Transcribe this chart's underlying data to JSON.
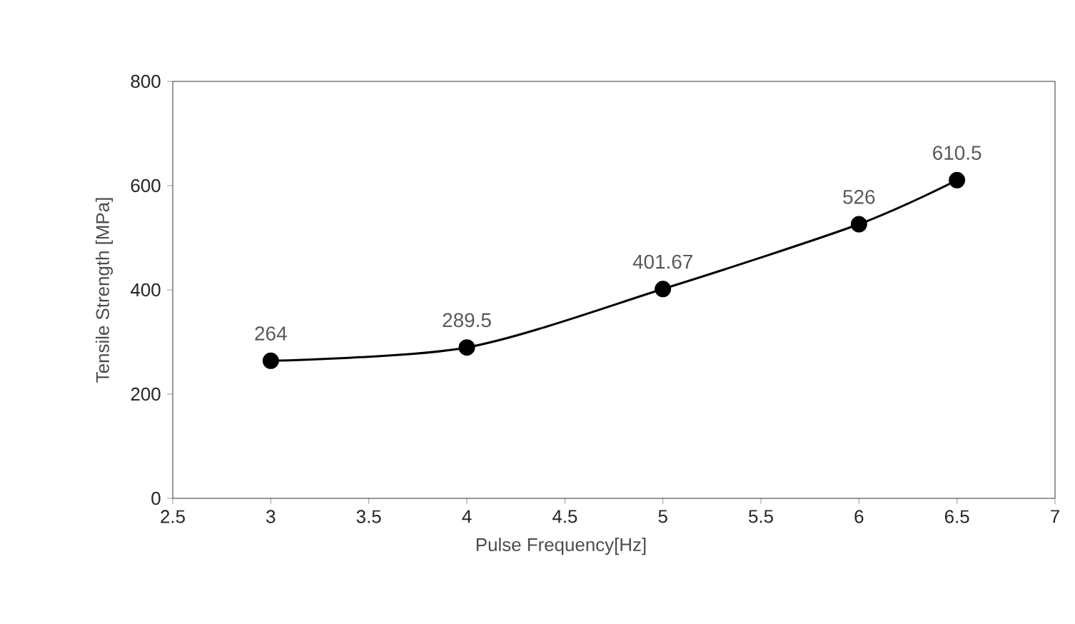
{
  "chart_data": {
    "type": "line",
    "xlabel": "Pulse Frequency[Hz]",
    "ylabel": "Tensile Strength [MPa]",
    "x": [
      3,
      4,
      5,
      6,
      6.5
    ],
    "series": [
      {
        "color": "#000000",
        "values": [
          264,
          289.5,
          401.67,
          526,
          610.5
        ]
      }
    ],
    "xlim": [
      2.5,
      7
    ],
    "xticks": [
      2.5,
      3,
      3.5,
      4,
      4.5,
      5,
      5.5,
      6,
      6.5,
      7
    ],
    "ylim": [
      0,
      800
    ],
    "yticks": [
      0,
      200,
      400,
      600,
      800
    ],
    "data_labels": true,
    "marker": "circle",
    "line_style": "solid",
    "grid": false
  }
}
